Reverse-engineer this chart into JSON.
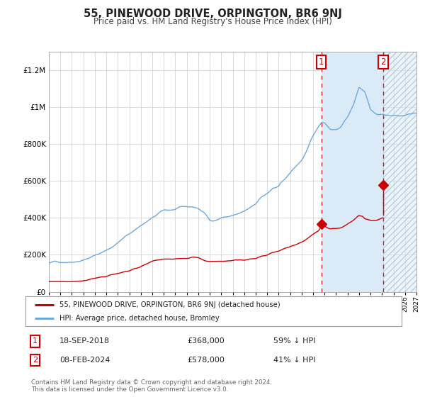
{
  "title": "55, PINEWOOD DRIVE, ORPINGTON, BR6 9NJ",
  "subtitle": "Price paid vs. HM Land Registry's House Price Index (HPI)",
  "footer": "Contains HM Land Registry data © Crown copyright and database right 2024.\nThis data is licensed under the Open Government Licence v3.0.",
  "legend_line1": "55, PINEWOOD DRIVE, ORPINGTON, BR6 9NJ (detached house)",
  "legend_line2": "HPI: Average price, detached house, Bromley",
  "annotation1_date": "18-SEP-2018",
  "annotation1_price": "£368,000",
  "annotation1_hpi": "59% ↓ HPI",
  "annotation2_date": "08-FEB-2024",
  "annotation2_price": "£578,000",
  "annotation2_hpi": "41% ↓ HPI",
  "hpi_color": "#6fa8dc",
  "price_color": "#cc0000",
  "background_color": "#ffffff",
  "grid_color": "#cccccc",
  "shading_color": "#daeaf7",
  "ylim": [
    0,
    1300000
  ],
  "yticks": [
    0,
    200000,
    400000,
    600000,
    800000,
    1000000,
    1200000
  ],
  "ytick_labels": [
    "£0",
    "£200K",
    "£400K",
    "£600K",
    "£800K",
    "£1M",
    "£1.2M"
  ],
  "year_start": 1995,
  "year_end": 2027,
  "sale1_year": 2018.72,
  "sale1_price": 368000,
  "sale2_year": 2024.1,
  "sale2_price": 578000,
  "hpi_seed": 42,
  "red_seed": 77
}
